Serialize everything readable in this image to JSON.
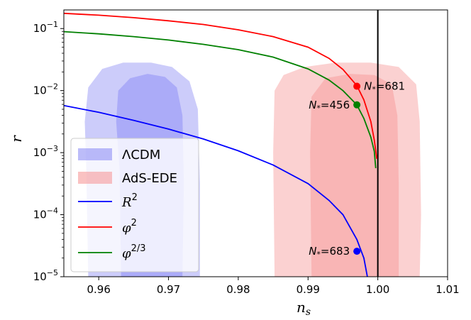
{
  "chart_data": {
    "type": "line",
    "xlabel": "n",
    "xlabel_sub": "s",
    "ylabel": "r",
    "xlim": [
      0.955,
      1.01
    ],
    "ylim_log10": [
      -5,
      -0.7
    ],
    "yscale": "log",
    "x_ticks": [
      0.96,
      0.97,
      0.98,
      0.99,
      1.0,
      1.01
    ],
    "x_tick_labels": [
      "0.96",
      "0.97",
      "0.98",
      "0.99",
      "1.00",
      "1.01"
    ],
    "y_ticks_log10": [
      -5,
      -4,
      -3,
      -2,
      -1
    ],
    "y_tick_bases": [
      "10",
      "10",
      "10",
      "10",
      "10"
    ],
    "y_tick_exps": [
      "−5",
      "−4",
      "−3",
      "−2",
      "−1"
    ],
    "vertical_line_x": 1.0,
    "regions": [
      {
        "name": "ΛCDM",
        "level": "outer",
        "color": "#8f8ff5",
        "opacity": 0.45,
        "points": [
          [
            0.9585,
            -5
          ],
          [
            0.9582,
            -3.2
          ],
          [
            0.958,
            -2.5
          ],
          [
            0.9585,
            -1.95
          ],
          [
            0.9605,
            -1.65
          ],
          [
            0.9635,
            -1.55
          ],
          [
            0.9675,
            -1.55
          ],
          [
            0.9705,
            -1.62
          ],
          [
            0.973,
            -1.85
          ],
          [
            0.9742,
            -2.3
          ],
          [
            0.9745,
            -3.5
          ],
          [
            0.9745,
            -5
          ]
        ]
      },
      {
        "name": "ΛCDM",
        "level": "inner",
        "color": "#8f8ff5",
        "opacity": 0.55,
        "points": [
          [
            0.9632,
            -5
          ],
          [
            0.963,
            -3.3
          ],
          [
            0.9625,
            -2.5
          ],
          [
            0.9628,
            -2.0
          ],
          [
            0.9645,
            -1.8
          ],
          [
            0.967,
            -1.73
          ],
          [
            0.9695,
            -1.78
          ],
          [
            0.9712,
            -1.95
          ],
          [
            0.972,
            -2.4
          ],
          [
            0.9722,
            -3.5
          ],
          [
            0.972,
            -5
          ]
        ]
      },
      {
        "name": "AdS-EDE",
        "level": "outer",
        "color": "#f79a9a",
        "opacity": 0.45,
        "points": [
          [
            0.9852,
            -5
          ],
          [
            0.985,
            -3.0
          ],
          [
            0.9852,
            -2.0
          ],
          [
            0.9865,
            -1.75
          ],
          [
            0.9895,
            -1.62
          ],
          [
            0.994,
            -1.55
          ],
          [
            0.999,
            -1.55
          ],
          [
            1.003,
            -1.62
          ],
          [
            1.0055,
            -1.9
          ],
          [
            1.006,
            -2.5
          ],
          [
            1.0062,
            -4.0
          ],
          [
            1.006,
            -5
          ]
        ]
      },
      {
        "name": "AdS-EDE",
        "level": "inner",
        "color": "#f79a9a",
        "opacity": 0.5,
        "points": [
          [
            0.9905,
            -5
          ],
          [
            0.9903,
            -3.0
          ],
          [
            0.9905,
            -2.1
          ],
          [
            0.9925,
            -1.8
          ],
          [
            0.996,
            -1.73
          ],
          [
            0.9995,
            -1.75
          ],
          [
            1.002,
            -1.9
          ],
          [
            1.0028,
            -2.4
          ],
          [
            1.003,
            -3.5
          ],
          [
            1.003,
            -5
          ]
        ]
      }
    ],
    "series": [
      {
        "name": "R",
        "sup": "2",
        "color": "#0000ff",
        "points": [
          [
            0.955,
            -2.24
          ],
          [
            0.96,
            -2.35
          ],
          [
            0.965,
            -2.48
          ],
          [
            0.97,
            -2.62
          ],
          [
            0.975,
            -2.78
          ],
          [
            0.98,
            -2.97
          ],
          [
            0.985,
            -3.2
          ],
          [
            0.99,
            -3.5
          ],
          [
            0.993,
            -3.77
          ],
          [
            0.995,
            -4.0
          ],
          [
            0.997,
            -4.4
          ],
          [
            0.998,
            -4.7
          ],
          [
            0.9985,
            -5.0
          ]
        ]
      },
      {
        "name": "φ",
        "sup": "2",
        "color": "#ff0000",
        "points": [
          [
            0.955,
            -0.755
          ],
          [
            0.96,
            -0.785
          ],
          [
            0.965,
            -0.825
          ],
          [
            0.97,
            -0.875
          ],
          [
            0.975,
            -0.935
          ],
          [
            0.98,
            -1.02
          ],
          [
            0.985,
            -1.13
          ],
          [
            0.99,
            -1.3
          ],
          [
            0.993,
            -1.48
          ],
          [
            0.995,
            -1.66
          ],
          [
            0.997,
            -1.92
          ],
          [
            0.998,
            -2.15
          ],
          [
            0.999,
            -2.5
          ],
          [
            0.9995,
            -2.8
          ],
          [
            0.99985,
            -3.1
          ]
        ]
      },
      {
        "name": "φ",
        "sup": "2/3",
        "color": "#008000",
        "points": [
          [
            0.955,
            -1.05
          ],
          [
            0.96,
            -1.085
          ],
          [
            0.965,
            -1.13
          ],
          [
            0.97,
            -1.185
          ],
          [
            0.975,
            -1.255
          ],
          [
            0.98,
            -1.34
          ],
          [
            0.985,
            -1.46
          ],
          [
            0.99,
            -1.65
          ],
          [
            0.993,
            -1.83
          ],
          [
            0.995,
            -2.0
          ],
          [
            0.997,
            -2.23
          ],
          [
            0.998,
            -2.45
          ],
          [
            0.999,
            -2.75
          ],
          [
            0.9995,
            -2.98
          ],
          [
            0.9997,
            -3.25
          ]
        ]
      }
    ],
    "markers": [
      {
        "x": 0.997,
        "log10y": -1.93,
        "color": "#ff0000",
        "label": "N*=681",
        "label_pos": "right"
      },
      {
        "x": 0.997,
        "log10y": -2.23,
        "color": "#008000",
        "label": "N*=456",
        "label_pos": "left"
      },
      {
        "x": 0.997,
        "log10y": -4.59,
        "color": "#0000ff",
        "label": "N*=683",
        "label_pos": "left"
      }
    ],
    "legend": {
      "location": "lower-left",
      "entries": [
        {
          "label": "ΛCDM",
          "kind": "patch",
          "color": "#8f8ff5"
        },
        {
          "label": "AdS-EDE",
          "kind": "patch",
          "color": "#f79a9a"
        },
        {
          "label": "R",
          "sup": "2",
          "kind": "line",
          "color": "#0000ff"
        },
        {
          "label": "φ",
          "sup": "2",
          "kind": "line",
          "color": "#ff0000"
        },
        {
          "label": "φ",
          "sup": "2/3",
          "kind": "line",
          "color": "#008000"
        }
      ]
    }
  }
}
